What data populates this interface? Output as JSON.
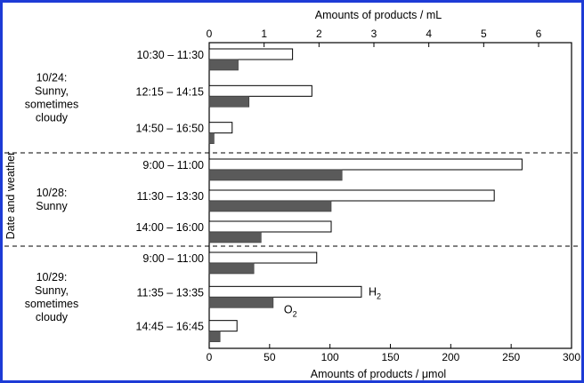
{
  "chart_data": {
    "type": "bar",
    "orientation": "horizontal",
    "top_axis": {
      "label": "Amounts of products / mL",
      "range": [
        0,
        6.6
      ],
      "ticks": [
        "0",
        "1",
        "2",
        "3",
        "4",
        "5",
        "6"
      ]
    },
    "bottom_axis": {
      "label": "Amounts of products / μmol",
      "range": [
        0,
        300
      ],
      "ticks": [
        "0",
        "50",
        "100",
        "150",
        "200",
        "250",
        "300"
      ]
    },
    "ylabel": "Date and weather",
    "groups": [
      {
        "label_lines": [
          "10/24:",
          "Sunny,",
          "sometimes",
          "cloudy"
        ],
        "periods": [
          {
            "time": "10:30 – 11:30",
            "H2": 69,
            "O2": 24
          },
          {
            "time": "12:15 – 14:15",
            "H2": 85,
            "O2": 33
          },
          {
            "time": "14:50 – 16:50",
            "H2": 19,
            "O2": 4
          }
        ]
      },
      {
        "label_lines": [
          "10/28:",
          "Sunny"
        ],
        "periods": [
          {
            "time": "9:00 – 11:00",
            "H2": 259,
            "O2": 110
          },
          {
            "time": "11:30 – 13:30",
            "H2": 236,
            "O2": 101
          },
          {
            "time": "14:00 – 16:00",
            "H2": 101,
            "O2": 43
          }
        ]
      },
      {
        "label_lines": [
          "10/29:",
          "Sunny,",
          "sometimes",
          "cloudy"
        ],
        "periods": [
          {
            "time": "9:00 – 11:00",
            "H2": 89,
            "O2": 37
          },
          {
            "time": "11:35 – 13:35",
            "H2": 126,
            "O2": 53
          },
          {
            "time": "14:45 – 16:45",
            "H2": 23,
            "O2": 9
          }
        ]
      }
    ],
    "series": [
      {
        "key": "H2",
        "name_main": "H",
        "name_sub": "2",
        "color": "#ffffff"
      },
      {
        "key": "O2",
        "name_main": "O",
        "name_sub": "2",
        "color": "#5a5a5a"
      }
    ]
  }
}
